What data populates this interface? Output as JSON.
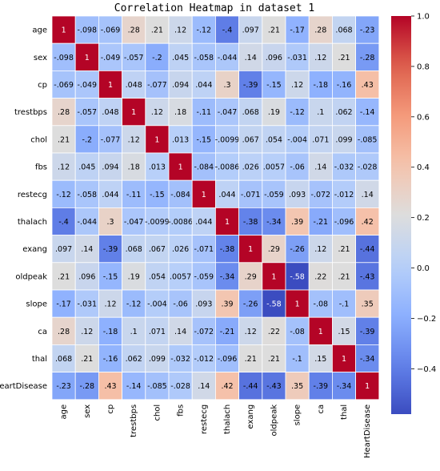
{
  "chart_data": {
    "type": "heatmap",
    "title": "Correlation Heatmap in dataset 1",
    "labels": [
      "age",
      "sex",
      "cp",
      "trestbps",
      "chol",
      "fbs",
      "restecg",
      "thalach",
      "exang",
      "oldpeak",
      "slope",
      "ca",
      "thal",
      "HeartDisease"
    ],
    "matrix": [
      [
        1,
        -0.098,
        -0.069,
        0.28,
        0.21,
        0.12,
        -0.12,
        -0.4,
        0.097,
        0.21,
        -0.17,
        0.28,
        0.068,
        -0.23
      ],
      [
        -0.098,
        1,
        -0.049,
        -0.057,
        -0.2,
        0.045,
        -0.058,
        -0.044,
        0.14,
        0.096,
        -0.031,
        0.12,
        0.21,
        -0.28
      ],
      [
        -0.069,
        -0.049,
        1,
        0.048,
        -0.077,
        0.094,
        0.044,
        0.3,
        -0.39,
        -0.15,
        0.12,
        -0.18,
        -0.16,
        0.43
      ],
      [
        0.28,
        -0.057,
        0.048,
        1,
        0.12,
        0.18,
        -0.11,
        -0.047,
        0.068,
        0.19,
        -0.12,
        0.1,
        0.062,
        -0.14
      ],
      [
        0.21,
        -0.2,
        -0.077,
        0.12,
        1,
        0.013,
        -0.15,
        -0.0099,
        0.067,
        0.054,
        -0.004,
        0.071,
        0.099,
        -0.085
      ],
      [
        0.12,
        0.045,
        0.094,
        0.18,
        0.013,
        1,
        -0.084,
        -0.0086,
        0.026,
        0.0057,
        -0.06,
        0.14,
        -0.032,
        -0.028
      ],
      [
        -0.12,
        -0.058,
        0.044,
        -0.11,
        -0.15,
        -0.084,
        1,
        0.044,
        -0.071,
        -0.059,
        0.093,
        -0.072,
        -0.012,
        0.14
      ],
      [
        -0.4,
        -0.044,
        0.3,
        -0.047,
        -0.0099,
        -0.0086,
        0.044,
        1,
        -0.38,
        -0.34,
        0.39,
        -0.21,
        -0.096,
        0.42
      ],
      [
        0.097,
        0.14,
        -0.39,
        0.068,
        0.067,
        0.026,
        -0.071,
        -0.38,
        1,
        0.29,
        -0.26,
        0.12,
        0.21,
        -0.44
      ],
      [
        0.21,
        0.096,
        -0.15,
        0.19,
        0.054,
        0.0057,
        -0.059,
        -0.34,
        0.29,
        1,
        -0.58,
        0.22,
        0.21,
        -0.43
      ],
      [
        -0.17,
        -0.031,
        0.12,
        -0.12,
        -0.004,
        -0.06,
        0.093,
        0.39,
        -0.26,
        -0.58,
        1,
        -0.08,
        -0.1,
        0.35
      ],
      [
        0.28,
        0.12,
        -0.18,
        0.1,
        0.071,
        0.14,
        -0.072,
        -0.21,
        0.12,
        0.22,
        -0.08,
        1,
        0.15,
        -0.39
      ],
      [
        0.068,
        0.21,
        -0.16,
        0.062,
        0.099,
        -0.032,
        -0.012,
        -0.096,
        0.21,
        0.21,
        -0.1,
        0.15,
        1,
        -0.34
      ],
      [
        -0.23,
        -0.28,
        0.43,
        -0.14,
        -0.085,
        -0.028,
        0.14,
        0.42,
        -0.44,
        -0.43,
        0.35,
        -0.39,
        -0.34,
        1
      ]
    ],
    "colorbar": {
      "colormap": "coolwarm",
      "vmin": -0.58,
      "vmax": 1.0,
      "ticks": [
        1.0,
        0.8,
        0.6,
        0.4,
        0.2,
        0.0,
        -0.2,
        -0.4
      ],
      "tick_labels": [
        "1.0",
        "0.8",
        "0.6",
        "0.4",
        "0.2",
        "0.0",
        "−0.2",
        "−0.4"
      ]
    }
  }
}
